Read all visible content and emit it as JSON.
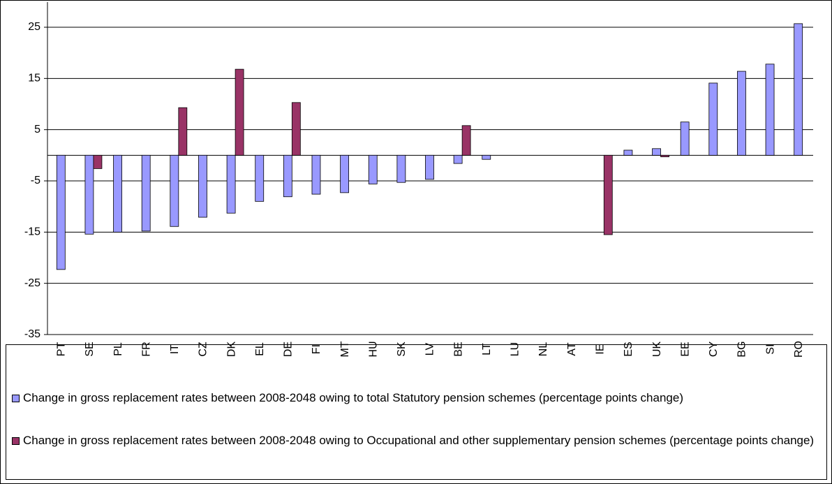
{
  "chart_data": {
    "type": "bar",
    "categories": [
      "PT",
      "SE",
      "PL",
      "FR",
      "IT",
      "CZ",
      "DK",
      "EL",
      "DE",
      "FI",
      "MT",
      "HU",
      "SK",
      "LV",
      "BE",
      "LT",
      "LU",
      "NL",
      "AT",
      "IE",
      "ES",
      "UK",
      "EE",
      "CY",
      "BG",
      "SI",
      "RO"
    ],
    "series": [
      {
        "name": "Change in gross replacement rates between 2008-2048 owing to total Statutory pension schemes (percentage points change)",
        "color": "#9999ff",
        "values": [
          -22.3,
          -15.4,
          -15.0,
          -14.8,
          -13.9,
          -12.1,
          -11.3,
          -9.0,
          -8.1,
          -7.6,
          -7.3,
          -5.6,
          -5.3,
          -4.7,
          -1.6,
          -0.8,
          null,
          null,
          null,
          null,
          1.0,
          1.3,
          6.5,
          14.1,
          16.4,
          17.8,
          25.7
        ]
      },
      {
        "name": "Change in gross replacement rates between 2008-2048 owing to Occupational and other supplementary pension schemes (percentage points change)",
        "color": "#993366",
        "values": [
          null,
          -2.6,
          null,
          null,
          9.3,
          null,
          16.8,
          null,
          10.3,
          null,
          null,
          null,
          null,
          null,
          5.8,
          null,
          null,
          null,
          null,
          -15.5,
          null,
          -0.3,
          null,
          null,
          null,
          null,
          null
        ]
      }
    ],
    "ylim": [
      -35,
      25
    ],
    "yticks": [
      -35,
      -25,
      -15,
      -5,
      5,
      15,
      25
    ],
    "grid": true
  }
}
